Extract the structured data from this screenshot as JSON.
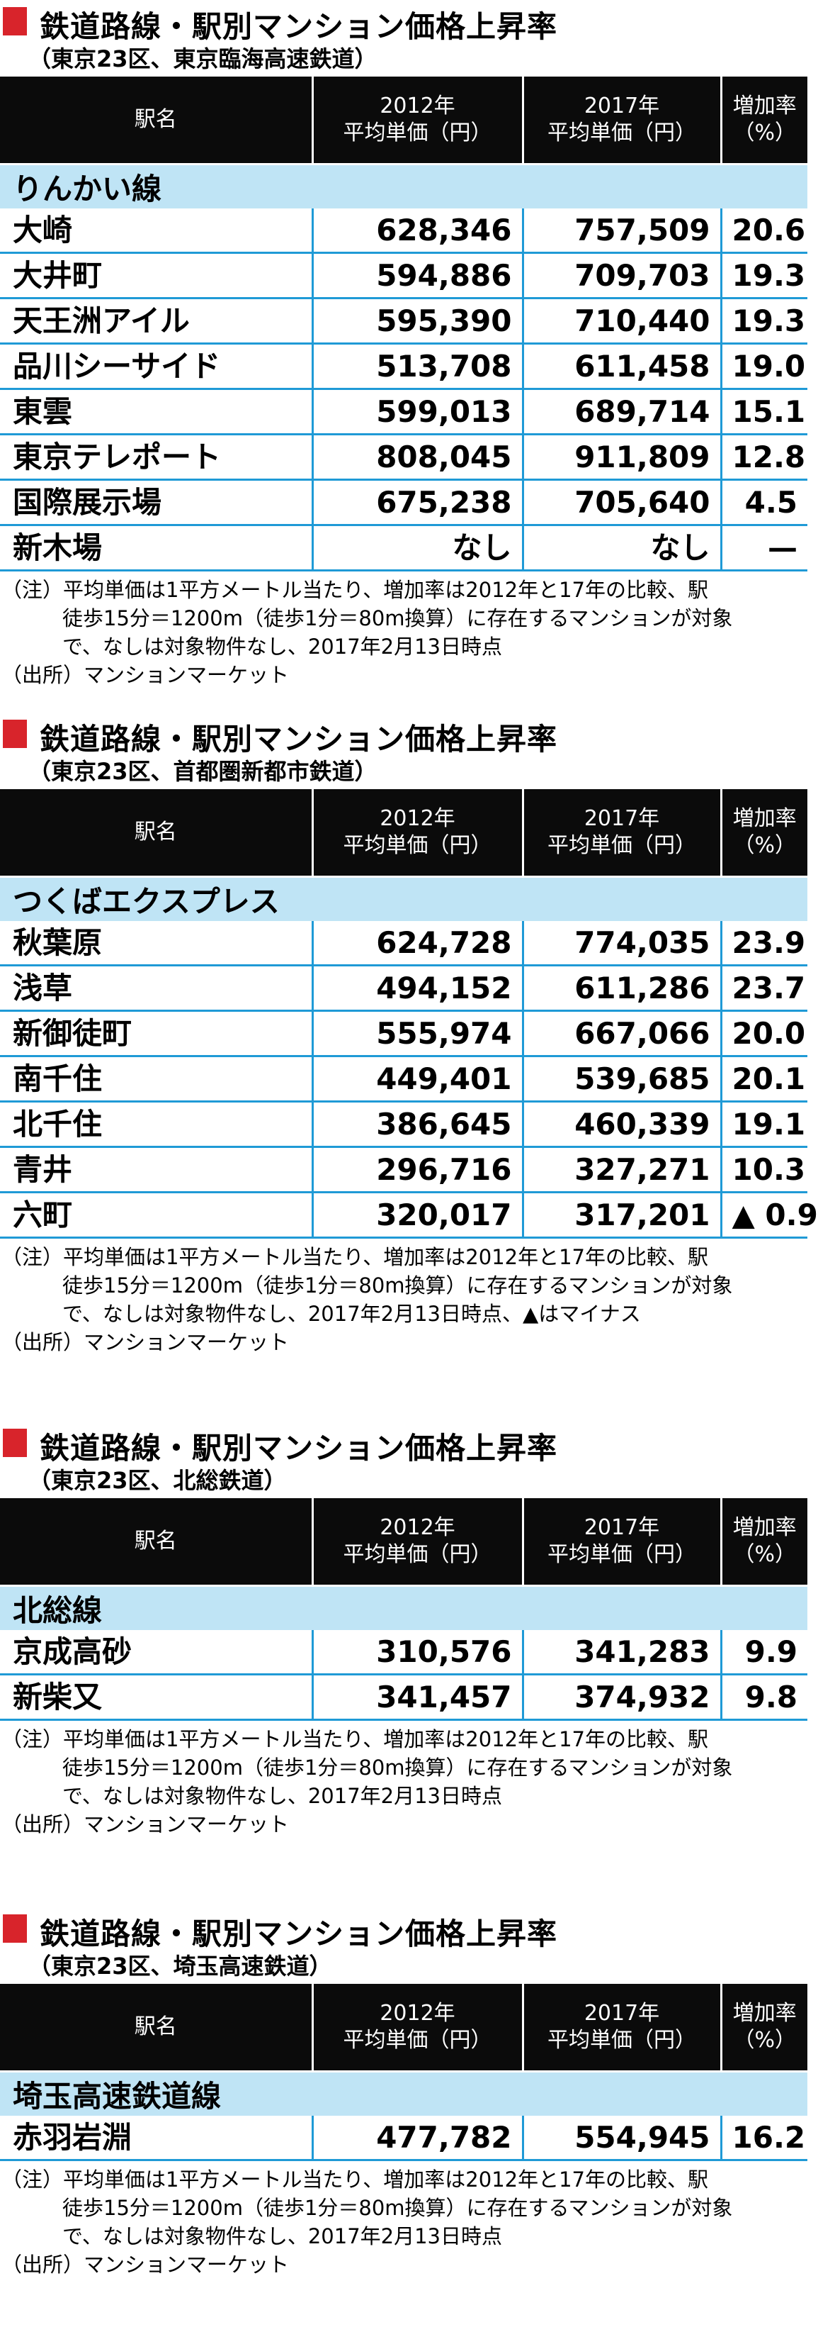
{
  "columns": {
    "name": "駅名",
    "price2012_line1": "2012年",
    "price2012_line2": "平均単価（円）",
    "price2017_line1": "2017年",
    "price2017_line2": "平均単価（円）",
    "rate_line1": "増加率",
    "rate_line2": "（%）"
  },
  "tables": [
    {
      "title": "鉄道路線・駅別マンション価格上昇率",
      "subtitle": "（東京23区、東京臨海高速鉄道）",
      "line": "りんかい線",
      "rows": [
        {
          "name": "大崎",
          "p2012": "628,346",
          "p2017": "757,509",
          "rate": "20.6"
        },
        {
          "name": "大井町",
          "p2012": "594,886",
          "p2017": "709,703",
          "rate": "19.3"
        },
        {
          "name": "天王洲アイル",
          "p2012": "595,390",
          "p2017": "710,440",
          "rate": "19.3"
        },
        {
          "name": "品川シーサイド",
          "p2012": "513,708",
          "p2017": "611,458",
          "rate": "19.0"
        },
        {
          "name": "東雲",
          "p2012": "599,013",
          "p2017": "689,714",
          "rate": "15.1"
        },
        {
          "name": "東京テレポート",
          "p2012": "808,045",
          "p2017": "911,809",
          "rate": "12.8"
        },
        {
          "name": "国際展示場",
          "p2012": "675,238",
          "p2017": "705,640",
          "rate": "4.5"
        },
        {
          "name": "新木場",
          "p2012": "なし",
          "p2017": "なし",
          "rate": "—"
        }
      ],
      "note_line1": "（注）平均単価は1平方メートル当たり、増加率は2012年と17年の比較、駅",
      "note_line2": "徒歩15分＝1200m（徒歩1分＝80m換算）に存在するマンションが対象",
      "note_line3": "で、なしは対象物件なし、2017年2月13日時点",
      "source": "（出所）マンションマーケット"
    },
    {
      "title": "鉄道路線・駅別マンション価格上昇率",
      "subtitle": "（東京23区、首都圏新都市鉄道）",
      "line": "つくばエクスプレス",
      "rows": [
        {
          "name": "秋葉原",
          "p2012": "624,728",
          "p2017": "774,035",
          "rate": "23.9"
        },
        {
          "name": "浅草",
          "p2012": "494,152",
          "p2017": "611,286",
          "rate": "23.7"
        },
        {
          "name": "新御徒町",
          "p2012": "555,974",
          "p2017": "667,066",
          "rate": "20.0"
        },
        {
          "name": "南千住",
          "p2012": "449,401",
          "p2017": "539,685",
          "rate": "20.1"
        },
        {
          "name": "北千住",
          "p2012": "386,645",
          "p2017": "460,339",
          "rate": "19.1"
        },
        {
          "name": "青井",
          "p2012": "296,716",
          "p2017": "327,271",
          "rate": "10.3"
        },
        {
          "name": "六町",
          "p2012": "320,017",
          "p2017": "317,201",
          "rate": "▲ 0.9"
        }
      ],
      "note_line1": "（注）平均単価は1平方メートル当たり、増加率は2012年と17年の比較、駅",
      "note_line2": "徒歩15分＝1200m（徒歩1分＝80m換算）に存在するマンションが対象",
      "note_line3": "で、なしは対象物件なし、2017年2月13日時点、▲はマイナス",
      "source": "（出所）マンションマーケット"
    },
    {
      "title": "鉄道路線・駅別マンション価格上昇率",
      "subtitle": "（東京23区、北総鉄道）",
      "line": "北総線",
      "rows": [
        {
          "name": "京成高砂",
          "p2012": "310,576",
          "p2017": "341,283",
          "rate": "9.9"
        },
        {
          "name": "新柴又",
          "p2012": "341,457",
          "p2017": "374,932",
          "rate": "9.8"
        }
      ],
      "note_line1": "（注）平均単価は1平方メートル当たり、増加率は2012年と17年の比較、駅",
      "note_line2": "徒歩15分＝1200m（徒歩1分＝80m換算）に存在するマンションが対象",
      "note_line3": "で、なしは対象物件なし、2017年2月13日時点",
      "source": "（出所）マンションマーケット"
    },
    {
      "title": "鉄道路線・駅別マンション価格上昇率",
      "subtitle": "（東京23区、埼玉高速鉄道）",
      "line": "埼玉高速鉄道線",
      "rows": [
        {
          "name": "赤羽岩淵",
          "p2012": "477,782",
          "p2017": "554,945",
          "rate": "16.2"
        }
      ],
      "note_line1": "（注）平均単価は1平方メートル当たり、増加率は2012年と17年の比較、駅",
      "note_line2": "徒歩15分＝1200m（徒歩1分＝80m換算）に存在するマンションが対象",
      "note_line3": "で、なしは対象物件なし、2017年2月13日時点",
      "source": "（出所）マンションマーケット"
    }
  ],
  "colors": {
    "marker": "#d8242b",
    "header_bg": "#0b0b0b",
    "line_row_bg": "#bfe4f5",
    "grid": "#1f9ad6"
  }
}
